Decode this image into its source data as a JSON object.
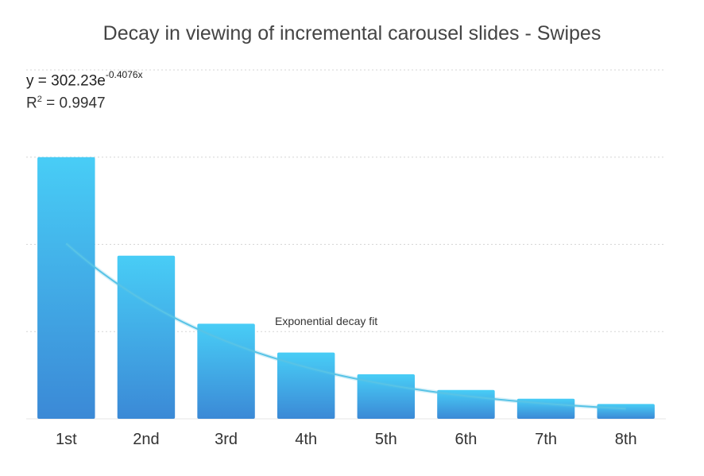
{
  "chart_data": {
    "type": "bar",
    "title": "Decay in viewing of incremental carousel slides - Swipes",
    "xlabel": "",
    "ylabel": "",
    "categories": [
      "1st",
      "2nd",
      "3rd",
      "4th",
      "5th",
      "6th",
      "7th",
      "8th"
    ],
    "values": [
      300,
      187,
      109,
      76,
      51,
      33,
      23,
      17
    ],
    "ylim": [
      0,
      400
    ],
    "grid": true,
    "colors": {
      "bar_top": "#48cdf6",
      "bar_bottom": "#3b89d6",
      "trendline": "#58c3e6",
      "gridline": "#d6d6d6"
    },
    "trendline": {
      "type": "exponential",
      "label": "Exponential decay fit",
      "equation_prefix": "y = 302.23e",
      "equation_exponent": "-0.4076x",
      "r_squared_prefix": "R",
      "r_squared_sup": "2",
      "r_squared_value": " = 0.9947",
      "a": 302.23,
      "b": -0.4076
    }
  }
}
